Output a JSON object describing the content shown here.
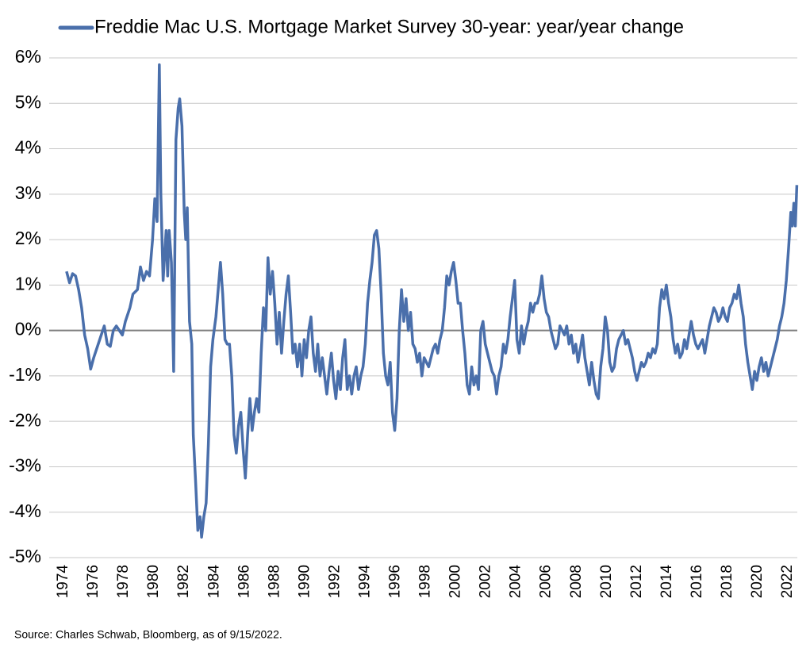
{
  "chart_data": {
    "type": "line",
    "note": "Source: Charles Schwab, Bloomberg, as of 9/15/2022.",
    "legend": "top",
    "grid": true,
    "xlim": [
      1973.05,
      2022.63
    ],
    "xticks": [
      1974,
      1976,
      1978,
      1980,
      1982,
      1984,
      1986,
      1988,
      1990,
      1992,
      1994,
      1996,
      1998,
      2000,
      2002,
      2004,
      2006,
      2008,
      2010,
      2012,
      2014,
      2016,
      2018,
      2020,
      2022
    ],
    "ylim": [
      -5,
      6
    ],
    "yticks": [
      {
        "value": -5,
        "label": "-5%"
      },
      {
        "value": -4,
        "label": "-4%"
      },
      {
        "value": -3,
        "label": "-3%"
      },
      {
        "value": -2,
        "label": "-2%"
      },
      {
        "value": -1,
        "label": "-1%"
      },
      {
        "value": 0,
        "label": "0%"
      },
      {
        "value": 1,
        "label": "1%"
      },
      {
        "value": 2,
        "label": "2%"
      },
      {
        "value": 3,
        "label": "3%"
      },
      {
        "value": 4,
        "label": "4%"
      },
      {
        "value": 5,
        "label": "5%"
      },
      {
        "value": 6,
        "label": "6%"
      }
    ],
    "x": [
      1974.2,
      1974.4,
      1974.6,
      1974.8,
      1975.0,
      1975.2,
      1975.4,
      1975.6,
      1975.8,
      1976.0,
      1976.2,
      1976.5,
      1976.7,
      1976.9,
      1977.1,
      1977.3,
      1977.5,
      1977.7,
      1977.9,
      1978.1,
      1978.4,
      1978.6,
      1978.9,
      1979.1,
      1979.3,
      1979.5,
      1979.7,
      1979.9,
      1980.05,
      1980.2,
      1980.35,
      1980.45,
      1980.6,
      1980.8,
      1980.9,
      1981.0,
      1981.15,
      1981.3,
      1981.45,
      1981.6,
      1981.7,
      1981.85,
      1982.0,
      1982.1,
      1982.2,
      1982.35,
      1982.5,
      1982.6,
      1982.75,
      1982.9,
      1983.05,
      1983.15,
      1983.3,
      1983.45,
      1983.6,
      1983.75,
      1983.9,
      1984.1,
      1984.25,
      1984.4,
      1984.55,
      1984.7,
      1984.85,
      1985.0,
      1985.15,
      1985.3,
      1985.45,
      1985.6,
      1985.75,
      1985.9,
      1986.05,
      1986.2,
      1986.35,
      1986.5,
      1986.65,
      1986.8,
      1986.95,
      1987.1,
      1987.25,
      1987.4,
      1987.55,
      1987.7,
      1987.85,
      1988.0,
      1988.15,
      1988.3,
      1988.45,
      1988.6,
      1988.75,
      1988.9,
      1989.05,
      1989.2,
      1989.35,
      1989.5,
      1989.65,
      1989.8,
      1989.95,
      1990.1,
      1990.25,
      1990.4,
      1990.55,
      1990.7,
      1990.85,
      1991.0,
      1991.15,
      1991.3,
      1991.45,
      1991.6,
      1991.75,
      1991.9,
      1992.05,
      1992.2,
      1992.35,
      1992.5,
      1992.65,
      1992.8,
      1992.95,
      1993.1,
      1993.25,
      1993.4,
      1993.55,
      1993.7,
      1993.85,
      1994.0,
      1994.15,
      1994.3,
      1994.45,
      1994.6,
      1994.75,
      1994.9,
      1995.05,
      1995.2,
      1995.35,
      1995.5,
      1995.65,
      1995.8,
      1995.95,
      1996.1,
      1996.25,
      1996.4,
      1996.55,
      1996.7,
      1996.85,
      1997.0,
      1997.15,
      1997.3,
      1997.45,
      1997.6,
      1997.75,
      1997.9,
      1998.05,
      1998.2,
      1998.35,
      1998.5,
      1998.65,
      1998.8,
      1998.95,
      1999.1,
      1999.25,
      1999.4,
      1999.55,
      1999.7,
      1999.85,
      2000.0,
      2000.15,
      2000.3,
      2000.45,
      2000.6,
      2000.75,
      2000.9,
      2001.05,
      2001.2,
      2001.35,
      2001.5,
      2001.65,
      2001.8,
      2001.95,
      2002.1,
      2002.25,
      2002.4,
      2002.55,
      2002.7,
      2002.85,
      2003.0,
      2003.15,
      2003.3,
      2003.45,
      2003.6,
      2003.75,
      2003.9,
      2004.05,
      2004.2,
      2004.35,
      2004.5,
      2004.65,
      2004.8,
      2004.95,
      2005.1,
      2005.25,
      2005.4,
      2005.55,
      2005.7,
      2005.85,
      2006.0,
      2006.15,
      2006.3,
      2006.45,
      2006.6,
      2006.75,
      2006.9,
      2007.05,
      2007.2,
      2007.35,
      2007.5,
      2007.65,
      2007.8,
      2007.95,
      2008.1,
      2008.25,
      2008.4,
      2008.55,
      2008.7,
      2008.85,
      2009.0,
      2009.15,
      2009.3,
      2009.45,
      2009.6,
      2009.75,
      2009.9,
      2010.05,
      2010.2,
      2010.35,
      2010.5,
      2010.65,
      2010.8,
      2010.95,
      2011.1,
      2011.25,
      2011.4,
      2011.55,
      2011.7,
      2011.85,
      2012.0,
      2012.15,
      2012.3,
      2012.45,
      2012.6,
      2012.75,
      2012.9,
      2013.05,
      2013.2,
      2013.35,
      2013.5,
      2013.65,
      2013.8,
      2013.95,
      2014.1,
      2014.25,
      2014.4,
      2014.55,
      2014.7,
      2014.85,
      2015.0,
      2015.15,
      2015.3,
      2015.45,
      2015.6,
      2015.75,
      2015.9,
      2016.05,
      2016.2,
      2016.35,
      2016.5,
      2016.65,
      2016.8,
      2016.95,
      2017.1,
      2017.25,
      2017.4,
      2017.55,
      2017.7,
      2017.85,
      2018.0,
      2018.15,
      2018.3,
      2018.45,
      2018.6,
      2018.75,
      2018.9,
      2019.05,
      2019.2,
      2019.35,
      2019.5,
      2019.65,
      2019.8,
      2019.95,
      2020.1,
      2020.25,
      2020.4,
      2020.55,
      2020.7,
      2020.85,
      2021.0,
      2021.15,
      2021.3,
      2021.45,
      2021.6,
      2021.75,
      2021.9,
      2022.05,
      2022.2,
      2022.3,
      2022.4,
      2022.5,
      2022.6
    ],
    "series": [
      {
        "name": "Freddie Mac U.S. Mortgage Market Survey 30-year: year/year change",
        "color": "#4a6fab",
        "values": [
          1.3,
          1.05,
          1.25,
          1.2,
          0.9,
          0.5,
          -0.1,
          -0.4,
          -0.85,
          -0.6,
          -0.4,
          -0.1,
          0.1,
          -0.3,
          -0.35,
          0.0,
          0.1,
          0.0,
          -0.1,
          0.2,
          0.5,
          0.8,
          0.9,
          1.4,
          1.1,
          1.3,
          1.2,
          2.0,
          2.9,
          2.4,
          5.85,
          3.0,
          1.1,
          2.2,
          1.2,
          2.2,
          1.5,
          -0.9,
          4.2,
          4.9,
          5.1,
          4.5,
          2.6,
          2.0,
          2.7,
          0.2,
          -0.3,
          -2.3,
          -3.3,
          -4.4,
          -4.1,
          -4.55,
          -4.1,
          -3.8,
          -2.5,
          -0.8,
          -0.2,
          0.3,
          0.9,
          1.5,
          0.8,
          -0.2,
          -0.3,
          -0.3,
          -1.0,
          -2.3,
          -2.7,
          -2.1,
          -1.8,
          -2.6,
          -3.25,
          -2.3,
          -1.5,
          -2.2,
          -1.8,
          -1.5,
          -1.8,
          -0.5,
          0.5,
          0.0,
          1.6,
          0.8,
          1.3,
          0.6,
          -0.3,
          0.4,
          -0.5,
          0.2,
          0.8,
          1.2,
          0.4,
          -0.5,
          -0.3,
          -0.8,
          -0.3,
          -1.0,
          -0.2,
          -0.6,
          0.0,
          0.3,
          -0.5,
          -0.9,
          -0.3,
          -1.0,
          -0.6,
          -1.0,
          -1.4,
          -0.9,
          -0.5,
          -1.1,
          -1.5,
          -0.9,
          -1.3,
          -0.6,
          -0.2,
          -1.3,
          -1.0,
          -1.4,
          -1.0,
          -0.8,
          -1.3,
          -1.0,
          -0.8,
          -0.3,
          0.6,
          1.1,
          1.5,
          2.1,
          2.2,
          1.8,
          0.8,
          -0.5,
          -1.0,
          -1.2,
          -0.7,
          -1.8,
          -2.2,
          -1.5,
          0.0,
          0.9,
          0.2,
          0.7,
          0.0,
          0.4,
          -0.3,
          -0.4,
          -0.7,
          -0.5,
          -1.0,
          -0.6,
          -0.7,
          -0.8,
          -0.6,
          -0.4,
          -0.3,
          -0.5,
          -0.2,
          0.0,
          0.5,
          1.2,
          1.0,
          1.3,
          1.5,
          1.1,
          0.6,
          0.6,
          0.0,
          -0.5,
          -1.2,
          -1.4,
          -0.8,
          -1.2,
          -1.0,
          -1.3,
          0.0,
          0.2,
          -0.3,
          -0.5,
          -0.7,
          -0.9,
          -1.0,
          -1.4,
          -1.0,
          -0.8,
          -0.3,
          -0.5,
          -0.2,
          0.3,
          0.7,
          1.1,
          -0.2,
          -0.5,
          0.1,
          -0.3,
          0.0,
          0.2,
          0.6,
          0.4,
          0.6,
          0.6,
          0.8,
          1.2,
          0.7,
          0.4,
          0.3,
          0.0,
          -0.2,
          -0.4,
          -0.3,
          0.1,
          0.0,
          -0.1,
          0.1,
          -0.3,
          -0.1,
          -0.5,
          -0.3,
          -0.7,
          -0.4,
          -0.1,
          -0.6,
          -0.9,
          -1.2,
          -0.7,
          -1.1,
          -1.4,
          -1.5,
          -0.8,
          -0.4,
          0.3,
          0.0,
          -0.7,
          -0.9,
          -0.8,
          -0.4,
          -0.2,
          -0.1,
          0.0,
          -0.3,
          -0.2,
          -0.4,
          -0.6,
          -0.9,
          -1.1,
          -0.9,
          -0.7,
          -0.8,
          -0.7,
          -0.5,
          -0.6,
          -0.4,
          -0.5,
          -0.3,
          0.5,
          0.9,
          0.7,
          1.0,
          0.6,
          0.3,
          -0.2,
          -0.5,
          -0.3,
          -0.6,
          -0.5,
          -0.2,
          -0.4,
          -0.1,
          0.2,
          -0.1,
          -0.3,
          -0.4,
          -0.3,
          -0.2,
          -0.5,
          -0.2,
          0.1,
          0.3,
          0.5,
          0.4,
          0.2,
          0.3,
          0.5,
          0.3,
          0.2,
          0.5,
          0.6,
          0.8,
          0.7,
          1.0,
          0.6,
          0.3,
          -0.3,
          -0.7,
          -1.0,
          -1.3,
          -0.9,
          -1.1,
          -0.8,
          -0.6,
          -0.9,
          -0.7,
          -1.0,
          -0.8,
          -0.6,
          -0.4,
          -0.2,
          0.1,
          0.3,
          0.6,
          1.1,
          1.8,
          2.6,
          2.3,
          2.8,
          2.3,
          3.2
        ]
      }
    ]
  }
}
